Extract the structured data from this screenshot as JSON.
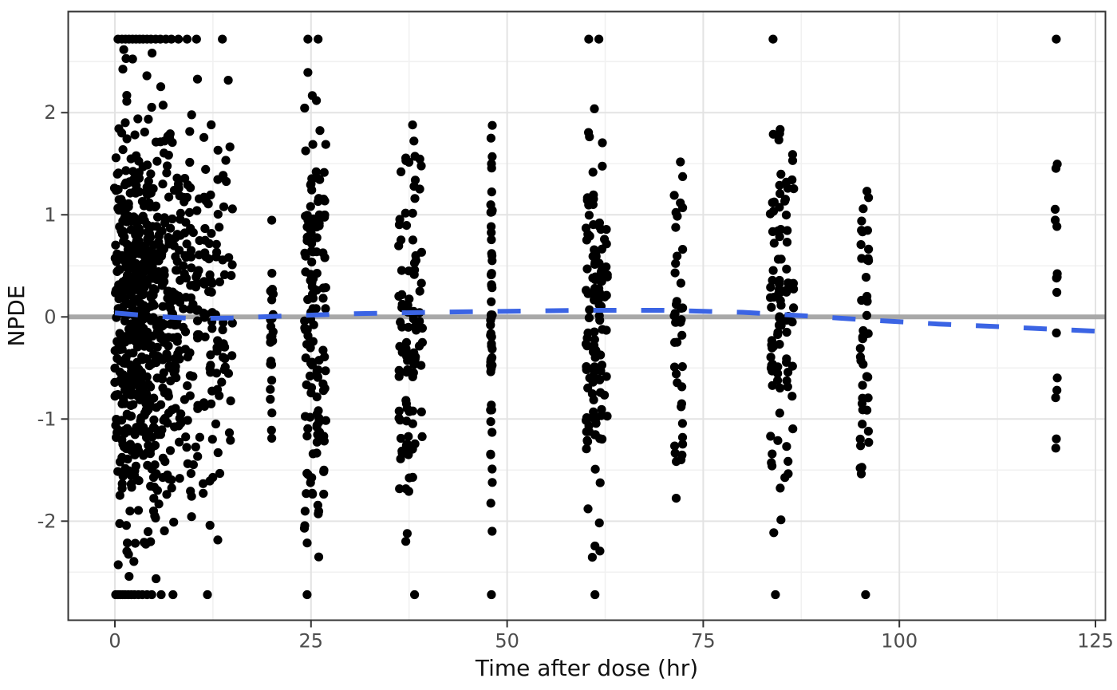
{
  "chart_data": {
    "type": "scatter",
    "title": "",
    "xlabel": "Time after dose (hr)",
    "ylabel": "NPDE",
    "xlim": [
      -5.95,
      126.27
    ],
    "ylim": [
      -2.97,
      2.99
    ],
    "x_ticks": {
      "values": [
        0,
        25,
        50,
        75,
        100,
        125
      ],
      "labels": [
        "0",
        "25",
        "50",
        "75",
        "100",
        "125"
      ]
    },
    "y_ticks": {
      "values": [
        -2,
        -1,
        0,
        1,
        2
      ],
      "labels": [
        "-2",
        "-1",
        "0",
        "1",
        "2"
      ]
    },
    "x_minor_gridlines": [
      12.5,
      37.5,
      62.5,
      87.5,
      112.5
    ],
    "y_minor_gridlines": [
      -2.5,
      -1.5,
      -0.5,
      0.5,
      1.5,
      2.5
    ],
    "grid": true,
    "legend": "none",
    "clip_limit": 2.72,
    "reference_line": {
      "y": 0,
      "width": 6
    },
    "trend_line": {
      "style": "dashed",
      "width": 6,
      "dash": [
        29,
        31
      ],
      "points": [
        [
          0,
          0.04
        ],
        [
          5,
          0.005
        ],
        [
          10,
          -0.015
        ],
        [
          15,
          -0.01
        ],
        [
          22,
          0.01
        ],
        [
          30,
          0.03
        ],
        [
          40,
          0.045
        ],
        [
          50,
          0.055
        ],
        [
          60,
          0.065
        ],
        [
          70,
          0.065
        ],
        [
          80,
          0.045
        ],
        [
          88,
          0.01
        ],
        [
          96,
          -0.03
        ],
        [
          105,
          -0.07
        ],
        [
          114,
          -0.1
        ],
        [
          126.27,
          -0.145
        ]
      ]
    },
    "points": {
      "radius": 5.6,
      "sd": 1.05,
      "seed": 20240613,
      "bands_format": [
        "time_hr",
        "n_points",
        "x_jitter_hr",
        "y_min",
        "y_max"
      ],
      "bands": [
        [
          0.25,
          38,
          0.3,
          -2.68,
          2.68
        ],
        [
          0.8,
          48,
          0.3,
          -2.68,
          2.68
        ],
        [
          1.3,
          52,
          0.3,
          -2.68,
          2.68
        ],
        [
          1.8,
          50,
          0.3,
          -2.68,
          2.68
        ],
        [
          2.3,
          52,
          0.3,
          -2.68,
          2.68
        ],
        [
          2.8,
          48,
          0.3,
          -2.68,
          2.68
        ],
        [
          3.3,
          48,
          0.3,
          -2.68,
          2.68
        ],
        [
          3.8,
          44,
          0.3,
          -2.68,
          2.68
        ],
        [
          4.3,
          42,
          0.3,
          -2.68,
          2.68
        ],
        [
          4.8,
          40,
          0.3,
          -2.68,
          2.68
        ],
        [
          5.4,
          38,
          0.3,
          -2.68,
          2.68
        ],
        [
          6.1,
          42,
          0.3,
          -2.68,
          2.68
        ],
        [
          6.8,
          34,
          0.3,
          -2.68,
          2.68
        ],
        [
          7.5,
          30,
          0.3,
          -2.68,
          2.68
        ],
        [
          8.2,
          28,
          0.3,
          -2.68,
          2.68
        ],
        [
          9.0,
          25,
          0.3,
          -2.68,
          2.68
        ],
        [
          9.8,
          24,
          0.3,
          -2.68,
          2.68
        ],
        [
          10.6,
          22,
          0.3,
          -2.68,
          2.68
        ],
        [
          11.4,
          20,
          0.3,
          -2.68,
          2.68
        ],
        [
          12.2,
          24,
          0.3,
          -2.68,
          2.68
        ],
        [
          13.1,
          20,
          0.3,
          -2.68,
          2.68
        ],
        [
          13.9,
          16,
          0.3,
          -2.68,
          2.68
        ],
        [
          14.7,
          12,
          0.3,
          -2.68,
          2.68
        ],
        [
          20,
          26,
          0.2,
          -1.72,
          2.1
        ],
        [
          24.4,
          32,
          0.25,
          -2.3,
          2.45
        ],
        [
          25.1,
          44,
          0.25,
          -2.55,
          2.45
        ],
        [
          25.9,
          38,
          0.25,
          -2.4,
          2.3
        ],
        [
          26.7,
          24,
          0.2,
          -2.1,
          2.2
        ],
        [
          36.4,
          24,
          0.25,
          -2.1,
          1.8
        ],
        [
          37.3,
          34,
          0.25,
          -2.45,
          1.95
        ],
        [
          38.2,
          30,
          0.25,
          -2.2,
          1.9
        ],
        [
          39.0,
          14,
          0.2,
          -1.8,
          1.6
        ],
        [
          48,
          54,
          0.12,
          -2.4,
          1.95
        ],
        [
          60.3,
          32,
          0.25,
          -2.5,
          2.5
        ],
        [
          61.1,
          44,
          0.25,
          -2.6,
          2.55
        ],
        [
          61.9,
          34,
          0.25,
          -2.3,
          2.4
        ],
        [
          62.6,
          14,
          0.2,
          -1.9,
          1.8
        ],
        [
          71.5,
          22,
          0.2,
          -2.3,
          1.72
        ],
        [
          72.2,
          20,
          0.2,
          -1.9,
          1.6
        ],
        [
          83.8,
          28,
          0.25,
          -2.4,
          1.95
        ],
        [
          84.7,
          34,
          0.25,
          -2.45,
          1.9
        ],
        [
          85.6,
          24,
          0.25,
          -2.1,
          1.85
        ],
        [
          86.4,
          12,
          0.2,
          -1.6,
          1.7
        ],
        [
          95.2,
          24,
          0.2,
          -2.28,
          1.68
        ],
        [
          95.9,
          20,
          0.2,
          -2.1,
          1.55
        ],
        [
          120,
          15,
          0.15,
          -1.88,
          1.85
        ]
      ],
      "clipped_top_times": [
        0.4,
        0.9,
        1.35,
        1.8,
        2.25,
        2.7,
        3.15,
        3.6,
        4.1,
        4.6,
        5.2,
        5.8,
        6.5,
        7.2,
        8.1,
        9.2,
        10.4,
        13.7,
        24.6,
        25.9,
        60.4,
        61.7,
        83.9,
        120
      ],
      "clipped_bottom_times": [
        0.1,
        0.4,
        0.7,
        1.0,
        1.3,
        1.7,
        2.1,
        2.5,
        3.0,
        3.5,
        4.1,
        4.7,
        5.9,
        7.4,
        11.8,
        24.5,
        38.2,
        48,
        61.2,
        84.2,
        95.7
      ]
    },
    "colors": {
      "point": "#000000",
      "trend": "#3B64E4",
      "reference": "#A8A8A8",
      "grid_major": "#E3E3E3",
      "grid_minor": "#F1F1F1",
      "panel_border": "#343434",
      "tick": "#343434",
      "tick_label": "#4D4D4D",
      "axis_title": "#111111",
      "background": "#FFFFFF"
    }
  }
}
